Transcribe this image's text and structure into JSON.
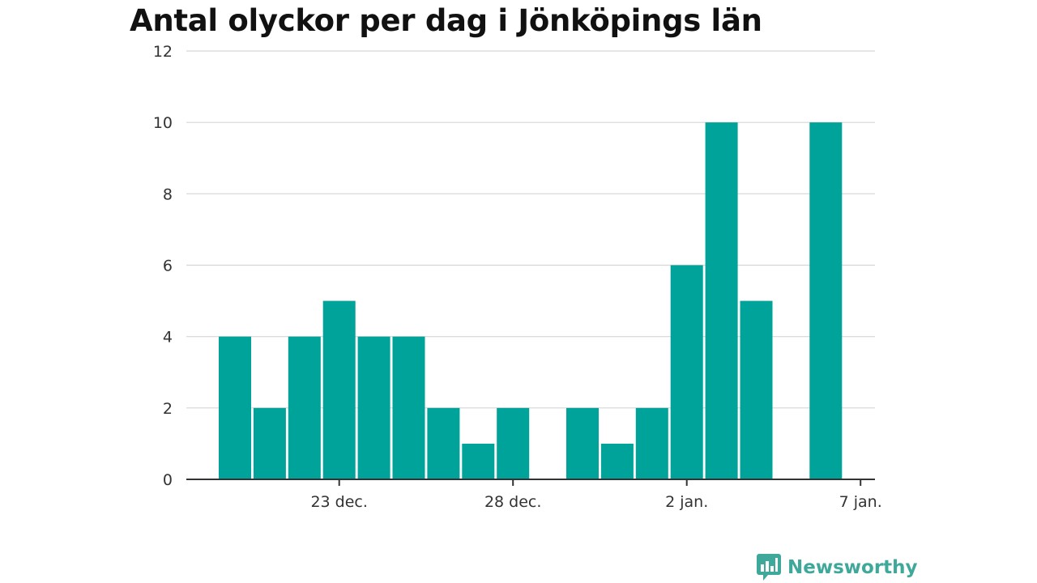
{
  "chart_data": {
    "type": "bar",
    "title": "Antal olyckor per dag i Jönköpings län",
    "xlabel": "",
    "ylabel": "",
    "x": [
      "2019-12-20",
      "2019-12-21",
      "2019-12-22",
      "2019-12-23",
      "2019-12-24",
      "2019-12-25",
      "2019-12-26",
      "2019-12-27",
      "2019-12-28",
      "2019-12-29",
      "2019-12-30",
      "2019-12-31",
      "2020-01-01",
      "2020-01-02",
      "2020-01-03",
      "2020-01-04",
      "2020-01-05",
      "2020-01-06"
    ],
    "values": [
      4,
      2,
      4,
      5,
      4,
      4,
      2,
      1,
      2,
      0,
      2,
      1,
      2,
      6,
      10,
      5,
      0,
      10
    ],
    "ylim": [
      0,
      12
    ],
    "yticks": [
      0,
      2,
      4,
      6,
      8,
      10,
      12
    ],
    "xticks": [
      {
        "date": "2019-12-23",
        "label": "23 dec."
      },
      {
        "date": "2019-12-28",
        "label": "28 dec."
      },
      {
        "date": "2020-01-02",
        "label": "2 jan."
      },
      {
        "date": "2020-01-07",
        "label": "7 jan."
      }
    ],
    "grid": true,
    "legend": "none",
    "bar_color": "#00a39a"
  },
  "branding": {
    "name": "Newsworthy",
    "icon": "newsworthy-logo-icon",
    "color": "#3ea89a"
  }
}
